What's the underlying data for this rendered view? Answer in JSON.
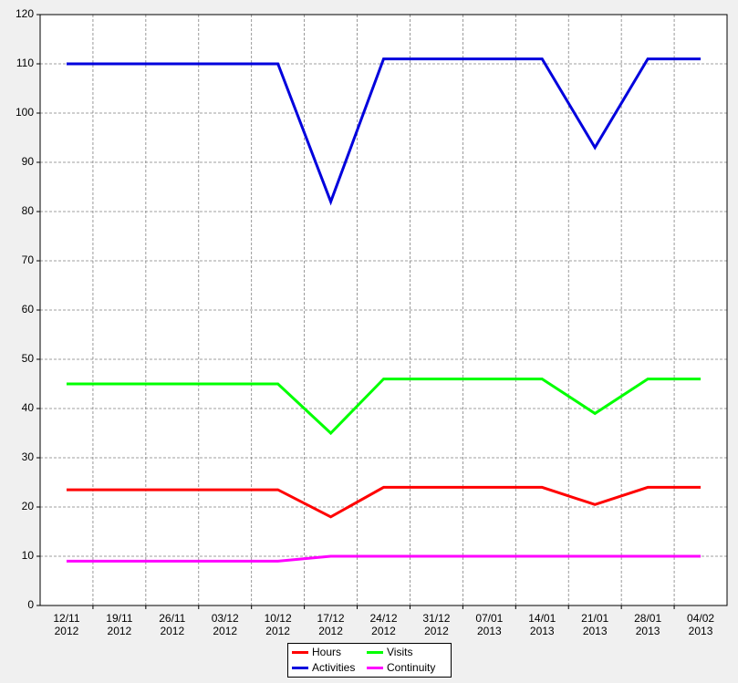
{
  "chart_data": {
    "type": "line",
    "categories": [
      "12/11 2012",
      "19/11 2012",
      "26/11 2012",
      "03/12 2012",
      "10/12 2012",
      "17/12 2012",
      "24/12 2012",
      "31/12 2012",
      "07/01 2013",
      "14/01 2013",
      "21/01 2013",
      "28/01 2013",
      "04/02 2013"
    ],
    "series": [
      {
        "name": "Hours",
        "color": "#ff0000",
        "values": [
          23.5,
          23.5,
          23.5,
          23.5,
          23.5,
          18,
          24,
          24,
          24,
          24,
          20.5,
          24,
          24
        ]
      },
      {
        "name": "Visits",
        "color": "#00ff00",
        "values": [
          45,
          45,
          45,
          45,
          45,
          35,
          46,
          46,
          46,
          46,
          39,
          46,
          46
        ]
      },
      {
        "name": "Activities",
        "color": "#0000dd",
        "values": [
          110,
          110,
          110,
          110,
          110,
          82,
          111,
          111,
          111,
          111,
          93,
          111,
          111
        ]
      },
      {
        "name": "Continuity",
        "color": "#ff00ff",
        "values": [
          9,
          9,
          9,
          9,
          9,
          10,
          10,
          10,
          10,
          10,
          10,
          10,
          10
        ]
      }
    ],
    "ylim": [
      0,
      120
    ],
    "yticks": [
      0,
      10,
      20,
      30,
      40,
      50,
      60,
      70,
      80,
      90,
      100,
      110,
      120
    ],
    "grid": true,
    "legend": "bottom"
  }
}
